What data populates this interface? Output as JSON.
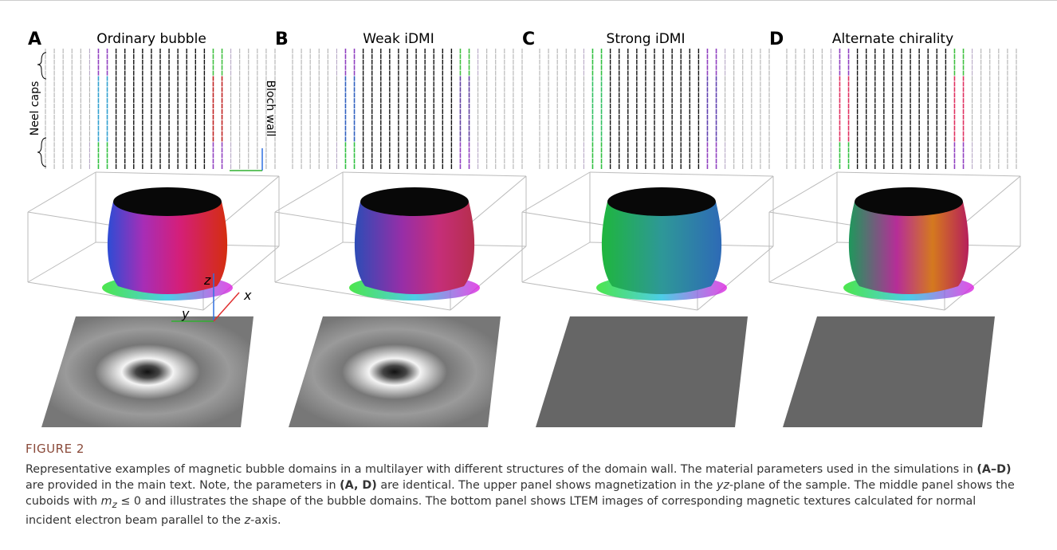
{
  "panels": [
    {
      "letter": "A",
      "title": "Ordinary bubble"
    },
    {
      "letter": "B",
      "title": "Weak iDMI"
    },
    {
      "letter": "C",
      "title": "Strong iDMI"
    },
    {
      "letter": "D",
      "title": "Alternate chirality"
    }
  ],
  "annotations": {
    "neel_caps": "Neel caps",
    "bloch_wall": "Bloch wall",
    "axis_z": "z",
    "axis_x": "x",
    "axis_y": "y"
  },
  "caption": {
    "label": "FIGURE 2",
    "segments": [
      {
        "text": "Representative examples of magnetic bubble domains in a multilayer with different structures of the domain wall. The material parameters used in the simulations in ",
        "style": "plain"
      },
      {
        "text": "(A–D)",
        "style": "bold"
      },
      {
        "text": " are provided in the main text. Note, the parameters in ",
        "style": "plain"
      },
      {
        "text": "(A, D)",
        "style": "bold"
      },
      {
        "text": " are identical. The upper panel shows magnetization in the ",
        "style": "plain"
      },
      {
        "text": "yz",
        "style": "italic"
      },
      {
        "text": "-plane of the sample. The middle panel shows the cuboids with ",
        "style": "plain"
      },
      {
        "text": "m",
        "style": "italic"
      },
      {
        "text": "z",
        "style": "sub"
      },
      {
        "text": " ≤ 0 and illustrates the shape of the bubble domains. The bottom panel shows LTEM images of corresponding magnetic textures calculated for normal incident electron beam parallel to the ",
        "style": "plain"
      },
      {
        "text": "z",
        "style": "italic"
      },
      {
        "text": "-axis.",
        "style": "plain"
      }
    ]
  }
}
